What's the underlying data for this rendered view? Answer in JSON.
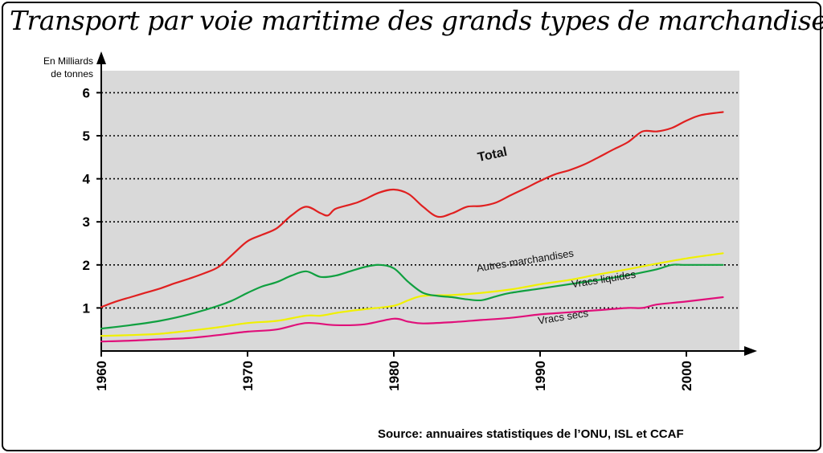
{
  "title": "Transport par voie maritime des grands types de marchandises",
  "source": "Source: annuaires statistiques de l’ONU, ISL et CCAF",
  "chart_data": {
    "type": "line",
    "title": "Transport par voie maritime des grands types de marchandises",
    "ylabel_line1": "En Milliards",
    "ylabel_line2": "de tonnes",
    "xlim": [
      1960,
      2003.7
    ],
    "ylim": [
      0,
      6.5
    ],
    "x_ticks": [
      1960,
      1970,
      1980,
      1990,
      2000
    ],
    "y_ticks": [
      1,
      2,
      3,
      4,
      5,
      6
    ],
    "grid": "horizontal dotted",
    "background": "#d9d9d9",
    "series": [
      {
        "name": "Total",
        "color": "#e02020",
        "points": [
          [
            1960,
            1.02
          ],
          [
            1961,
            1.15
          ],
          [
            1962,
            1.25
          ],
          [
            1963,
            1.35
          ],
          [
            1964,
            1.45
          ],
          [
            1965,
            1.57
          ],
          [
            1966,
            1.68
          ],
          [
            1967,
            1.8
          ],
          [
            1968,
            1.95
          ],
          [
            1969,
            2.25
          ],
          [
            1970,
            2.55
          ],
          [
            1971,
            2.7
          ],
          [
            1972,
            2.85
          ],
          [
            1973,
            3.15
          ],
          [
            1974,
            3.35
          ],
          [
            1975,
            3.2
          ],
          [
            1975.5,
            3.15
          ],
          [
            1976,
            3.3
          ],
          [
            1977,
            3.4
          ],
          [
            1977.5,
            3.45
          ],
          [
            1978,
            3.52
          ],
          [
            1979,
            3.68
          ],
          [
            1980,
            3.75
          ],
          [
            1981,
            3.65
          ],
          [
            1982,
            3.35
          ],
          [
            1983,
            3.12
          ],
          [
            1984,
            3.2
          ],
          [
            1985,
            3.35
          ],
          [
            1986,
            3.37
          ],
          [
            1987,
            3.45
          ],
          [
            1988,
            3.62
          ],
          [
            1989,
            3.78
          ],
          [
            1990,
            3.95
          ],
          [
            1991,
            4.1
          ],
          [
            1992,
            4.2
          ],
          [
            1993,
            4.33
          ],
          [
            1994,
            4.5
          ],
          [
            1995,
            4.68
          ],
          [
            1996,
            4.85
          ],
          [
            1997,
            5.1
          ],
          [
            1998,
            5.1
          ],
          [
            1999,
            5.18
          ],
          [
            2000,
            5.35
          ],
          [
            2001,
            5.48
          ],
          [
            2002.5,
            5.55
          ]
        ]
      },
      {
        "name": "Autres marchandises",
        "color": "#f0f000",
        "points": [
          [
            1960,
            0.35
          ],
          [
            1962,
            0.37
          ],
          [
            1964,
            0.4
          ],
          [
            1966,
            0.47
          ],
          [
            1968,
            0.55
          ],
          [
            1970,
            0.65
          ],
          [
            1972,
            0.7
          ],
          [
            1974,
            0.82
          ],
          [
            1975,
            0.82
          ],
          [
            1976,
            0.88
          ],
          [
            1977,
            0.93
          ],
          [
            1978,
            0.97
          ],
          [
            1980,
            1.05
          ],
          [
            1981,
            1.18
          ],
          [
            1982,
            1.28
          ],
          [
            1984,
            1.3
          ],
          [
            1986,
            1.35
          ],
          [
            1988,
            1.43
          ],
          [
            1990,
            1.55
          ],
          [
            1992,
            1.65
          ],
          [
            1994,
            1.78
          ],
          [
            1996,
            1.9
          ],
          [
            1998,
            2.03
          ],
          [
            2000,
            2.15
          ],
          [
            2002.5,
            2.27
          ]
        ]
      },
      {
        "name": "Vracs liquides",
        "color": "#10a040",
        "points": [
          [
            1960,
            0.52
          ],
          [
            1962,
            0.6
          ],
          [
            1964,
            0.7
          ],
          [
            1966,
            0.85
          ],
          [
            1968,
            1.05
          ],
          [
            1969,
            1.18
          ],
          [
            1970,
            1.35
          ],
          [
            1971,
            1.5
          ],
          [
            1972,
            1.6
          ],
          [
            1973,
            1.75
          ],
          [
            1974,
            1.85
          ],
          [
            1975,
            1.72
          ],
          [
            1976,
            1.75
          ],
          [
            1977,
            1.85
          ],
          [
            1978,
            1.95
          ],
          [
            1979,
            2.0
          ],
          [
            1980,
            1.92
          ],
          [
            1981,
            1.6
          ],
          [
            1982,
            1.35
          ],
          [
            1983,
            1.28
          ],
          [
            1984,
            1.25
          ],
          [
            1985,
            1.2
          ],
          [
            1986,
            1.18
          ],
          [
            1987,
            1.27
          ],
          [
            1988,
            1.35
          ],
          [
            1990,
            1.45
          ],
          [
            1992,
            1.55
          ],
          [
            1994,
            1.65
          ],
          [
            1996,
            1.76
          ],
          [
            1998,
            1.9
          ],
          [
            1999,
            2.0
          ],
          [
            2000,
            2.0
          ],
          [
            2002.5,
            2.0
          ]
        ]
      },
      {
        "name": "Vracs secs",
        "color": "#e0107a",
        "points": [
          [
            1960,
            0.22
          ],
          [
            1962,
            0.24
          ],
          [
            1964,
            0.27
          ],
          [
            1966,
            0.3
          ],
          [
            1968,
            0.37
          ],
          [
            1970,
            0.45
          ],
          [
            1972,
            0.5
          ],
          [
            1974,
            0.65
          ],
          [
            1976,
            0.6
          ],
          [
            1978,
            0.62
          ],
          [
            1980,
            0.75
          ],
          [
            1981,
            0.68
          ],
          [
            1982,
            0.64
          ],
          [
            1984,
            0.67
          ],
          [
            1986,
            0.72
          ],
          [
            1988,
            0.77
          ],
          [
            1990,
            0.85
          ],
          [
            1992,
            0.9
          ],
          [
            1994,
            0.95
          ],
          [
            1996,
            1.0
          ],
          [
            1997,
            1.0
          ],
          [
            1998,
            1.08
          ],
          [
            2000,
            1.15
          ],
          [
            2002.5,
            1.25
          ]
        ]
      }
    ],
    "annotations": [
      {
        "text": "Total",
        "series": "Total",
        "x": 1985.8,
        "y": 4.4,
        "bold": true,
        "rotate": -12
      },
      {
        "text": "Autres marchandises",
        "series": "Autres marchandises",
        "x": 1985.7,
        "y": 1.84,
        "bold": false,
        "rotate": -9
      },
      {
        "text": "Vracs liquides",
        "series": "Vracs liquides",
        "x": 1992.2,
        "y": 1.47,
        "bold": false,
        "rotate": -9
      },
      {
        "text": "Vracs secs",
        "series": "Vracs secs",
        "x": 1989.9,
        "y": 0.62,
        "bold": false,
        "rotate": -9
      }
    ]
  }
}
